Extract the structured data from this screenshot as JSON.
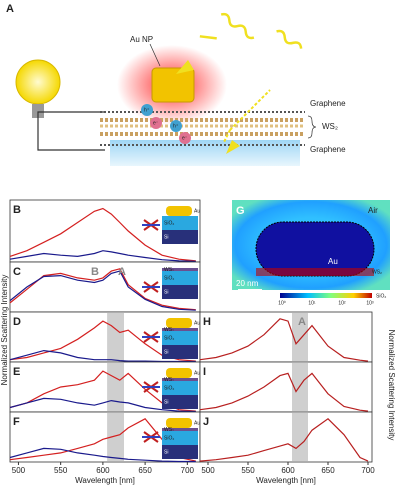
{
  "diagram": {
    "letter": "A",
    "np_label": "Au NP",
    "top_layer": "Graphene",
    "middle_layer": "WS₂",
    "bottom_layer": "Graphene",
    "carriers": [
      "h⁺",
      "e⁻",
      "h⁺",
      "e⁻"
    ]
  },
  "field_map": {
    "letter": "G",
    "medium": "Air",
    "particle": "Au",
    "layer": "WS₂",
    "substrate": "SiO₂",
    "scale": "20 nm",
    "colorbar": [
      "10⁰",
      "10¹",
      "10²",
      "10³"
    ]
  },
  "chart_data": [
    {
      "type": "line",
      "title": "B",
      "ylabel": "Normalized Scattering Intensity",
      "inset": [
        "Au",
        "SiO₂",
        "Si"
      ],
      "xlim": [
        490,
        715
      ],
      "ylim": [
        0,
        1.1
      ],
      "x": [
        490,
        510,
        530,
        550,
        570,
        590,
        600,
        610,
        620,
        630,
        650,
        670,
        690,
        710
      ],
      "series": [
        {
          "color": "#d42020",
          "values": [
            0.1,
            0.2,
            0.35,
            0.5,
            0.7,
            0.9,
            0.95,
            0.85,
            0.7,
            0.55,
            0.3,
            0.12,
            0.05,
            0.02
          ]
        },
        {
          "color": "#1a1a8c",
          "values": [
            0.05,
            0.1,
            0.15,
            0.12,
            0.1,
            0.15,
            0.2,
            0.18,
            0.15,
            0.12,
            0.08,
            0.04,
            0.02,
            0.01
          ]
        }
      ]
    },
    {
      "type": "line",
      "title": "C",
      "annotations": [
        "B",
        "A"
      ],
      "inset": [
        "WS₂",
        "SiO₂",
        "Si"
      ],
      "xlim": [
        490,
        715
      ],
      "ylim": [
        0,
        1.1
      ],
      "x": [
        490,
        510,
        530,
        550,
        570,
        590,
        600,
        610,
        620,
        630,
        650,
        670,
        690,
        710
      ],
      "series": [
        {
          "color": "#d42020",
          "values": [
            0.2,
            0.5,
            0.8,
            0.85,
            0.75,
            0.7,
            0.75,
            0.9,
            0.95,
            0.6,
            0.3,
            0.15,
            0.08,
            0.05
          ]
        },
        {
          "color": "#1a1a8c",
          "values": [
            0.25,
            0.55,
            0.78,
            0.8,
            0.7,
            0.65,
            0.7,
            0.85,
            0.9,
            0.55,
            0.28,
            0.12,
            0.06,
            0.04
          ]
        }
      ]
    },
    {
      "type": "line",
      "title": "D",
      "inset": [
        "Au",
        "WS₂",
        "SiO₂",
        "Si"
      ],
      "highlight": [
        605,
        625
      ],
      "xlim": [
        490,
        715
      ],
      "ylim": [
        0,
        1.1
      ],
      "x": [
        490,
        510,
        530,
        550,
        570,
        590,
        600,
        610,
        620,
        630,
        650,
        670,
        690,
        710
      ],
      "series": [
        {
          "color": "#d42020",
          "values": [
            0.05,
            0.1,
            0.2,
            0.3,
            0.5,
            0.75,
            0.9,
            0.8,
            0.65,
            0.7,
            0.4,
            0.15,
            0.05,
            0.02
          ]
        },
        {
          "color": "#1a1a8c",
          "values": [
            0.05,
            0.15,
            0.25,
            0.2,
            0.1,
            0.05,
            0.05,
            0.05,
            0.03,
            0.02,
            0.02,
            0.01,
            0.01,
            0.01
          ]
        }
      ]
    },
    {
      "type": "line",
      "title": "E",
      "inset": [
        "Au",
        "WS₂",
        "SiO₂",
        "Si"
      ],
      "highlight": [
        605,
        625
      ],
      "xlim": [
        490,
        715
      ],
      "ylim": [
        0,
        1.1
      ],
      "x": [
        490,
        510,
        530,
        550,
        570,
        590,
        600,
        610,
        620,
        630,
        650,
        670,
        690,
        710
      ],
      "series": [
        {
          "color": "#d42020",
          "values": [
            0.1,
            0.2,
            0.4,
            0.55,
            0.6,
            0.7,
            0.9,
            0.8,
            0.7,
            0.85,
            0.5,
            0.2,
            0.05,
            0.02
          ]
        },
        {
          "color": "#1a1a8c",
          "values": [
            0.1,
            0.2,
            0.3,
            0.28,
            0.2,
            0.15,
            0.2,
            0.25,
            0.22,
            0.2,
            0.1,
            0.05,
            0.02,
            0.01
          ]
        }
      ]
    },
    {
      "type": "line",
      "title": "F",
      "xlabel": "Wavelength [nm]",
      "inset": [
        "Au",
        "WS₂",
        "SiO₂",
        "Si"
      ],
      "highlight": [
        605,
        625
      ],
      "xlim": [
        490,
        715
      ],
      "ylim": [
        0,
        1.1
      ],
      "xticks": [
        500,
        550,
        600,
        650,
        700
      ],
      "x": [
        490,
        510,
        530,
        550,
        570,
        590,
        600,
        610,
        620,
        630,
        650,
        670,
        690,
        710
      ],
      "series": [
        {
          "color": "#d42020",
          "values": [
            0.05,
            0.1,
            0.15,
            0.2,
            0.3,
            0.4,
            0.5,
            0.55,
            0.6,
            0.75,
            0.95,
            0.5,
            0.1,
            0.02
          ]
        },
        {
          "color": "#1a1a8c",
          "values": [
            0.1,
            0.2,
            0.3,
            0.28,
            0.2,
            0.15,
            0.12,
            0.1,
            0.08,
            0.06,
            0.04,
            0.02,
            0.01,
            0.01
          ]
        }
      ]
    },
    {
      "type": "line",
      "title": "H",
      "ylabel": "Normalized Scattering Intensity",
      "annotations": [
        "A"
      ],
      "highlight": [
        605,
        625
      ],
      "xlim": [
        490,
        705
      ],
      "ylim": [
        0,
        1.1
      ],
      "x": [
        490,
        510,
        530,
        550,
        570,
        590,
        600,
        610,
        620,
        630,
        650,
        670,
        690,
        700
      ],
      "series": [
        {
          "color": "#b82020",
          "values": [
            0.05,
            0.1,
            0.2,
            0.35,
            0.6,
            0.95,
            0.9,
            0.4,
            0.6,
            0.8,
            0.35,
            0.1,
            0.04,
            0.02
          ]
        }
      ]
    },
    {
      "type": "line",
      "title": "I",
      "highlight": [
        605,
        625
      ],
      "xlim": [
        490,
        705
      ],
      "ylim": [
        0,
        1.1
      ],
      "x": [
        490,
        510,
        530,
        550,
        570,
        590,
        600,
        610,
        620,
        630,
        650,
        670,
        690,
        700
      ],
      "series": [
        {
          "color": "#b82020",
          "values": [
            0.05,
            0.1,
            0.2,
            0.35,
            0.55,
            0.8,
            0.85,
            0.45,
            0.7,
            0.85,
            0.4,
            0.12,
            0.04,
            0.02
          ]
        }
      ]
    },
    {
      "type": "line",
      "title": "J",
      "xlabel": "Wavelength [nm]",
      "highlight": [
        605,
        625
      ],
      "xlim": [
        490,
        705
      ],
      "ylim": [
        0,
        1.1
      ],
      "xticks": [
        500,
        550,
        600,
        650,
        700
      ],
      "x": [
        490,
        510,
        530,
        550,
        570,
        590,
        600,
        610,
        620,
        630,
        650,
        670,
        690,
        700
      ],
      "series": [
        {
          "color": "#b82020",
          "values": [
            0.02,
            0.05,
            0.1,
            0.15,
            0.25,
            0.35,
            0.4,
            0.3,
            0.45,
            0.7,
            0.95,
            0.6,
            0.1,
            0.02
          ]
        }
      ]
    }
  ]
}
